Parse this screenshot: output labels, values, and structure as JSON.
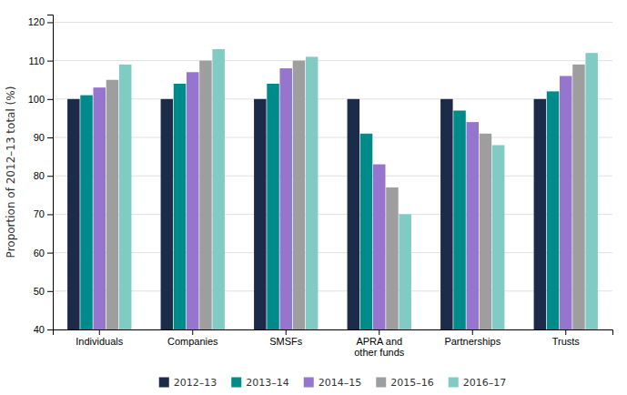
{
  "chart_data": {
    "type": "bar",
    "ylabel": "Proportion of 2012–13 total (%)",
    "categories": [
      "Individuals",
      "Companies",
      "SMSFs",
      "APRA and\nother funds",
      "Partnerships",
      "Trusts"
    ],
    "series": [
      {
        "name": "2012–13",
        "color": "#1c2b4a",
        "values": [
          100,
          100,
          100,
          100,
          100,
          100
        ]
      },
      {
        "name": "2013–14",
        "color": "#008b8b",
        "values": [
          101,
          104,
          104,
          91,
          97,
          102
        ]
      },
      {
        "name": "2014–15",
        "color": "#9575cd",
        "values": [
          103,
          107,
          108,
          83,
          94,
          106
        ]
      },
      {
        "name": "2015–16",
        "color": "#9e9e9e",
        "values": [
          105,
          110,
          110,
          77,
          91,
          109
        ]
      },
      {
        "name": "2016–17",
        "color": "#80cbc4",
        "values": [
          109,
          113,
          111,
          70,
          88,
          112
        ]
      }
    ],
    "ylim": [
      40,
      122
    ],
    "yticks": [
      40,
      50,
      60,
      70,
      80,
      90,
      100,
      110,
      120
    ],
    "grid": true,
    "legend": "bottom"
  }
}
